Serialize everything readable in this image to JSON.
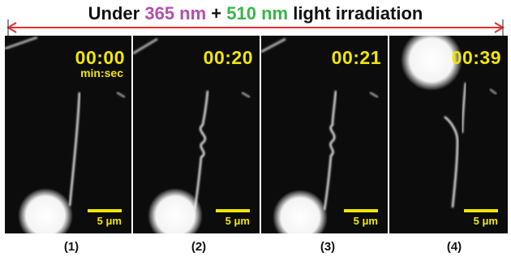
{
  "title": {
    "prefix": "Under ",
    "wavelength1": "365 nm",
    "joiner": " + ",
    "wavelength2": "510 nm",
    "suffix": " light irradiation",
    "color1": "#b04fb0",
    "color2": "#39b54a"
  },
  "panels": [
    {
      "time": "00:00",
      "unit": "min:sec",
      "scale": "5 μm",
      "label": "(1)"
    },
    {
      "time": "00:20",
      "scale": "5 μm",
      "label": "(2)"
    },
    {
      "time": "00:21",
      "scale": "5 μm",
      "label": "(3)"
    },
    {
      "time": "00:39",
      "scale": "5 μm",
      "label": "(4)"
    }
  ],
  "colors": {
    "annotation": "#f2e600",
    "arrow": "#e03030"
  }
}
